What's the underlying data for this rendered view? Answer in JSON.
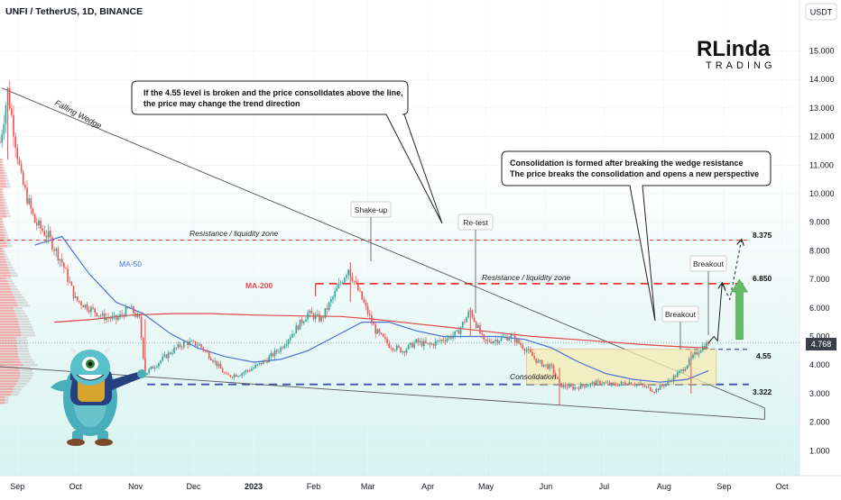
{
  "header": {
    "symbol_line": "UNFI / TetherUS, 1D, BINANCE",
    "currency_button": "USDT"
  },
  "logo": {
    "line1": "RLinda",
    "line2": "TRADING"
  },
  "colors": {
    "resistance": "#e53935",
    "support": "#3f51b5",
    "ma50": "#4a6fd8",
    "ma200": "#e04848",
    "bull": "#26a69a",
    "bear": "#ef5350",
    "consolidation_fill": "#f6ecb4",
    "arrow_green": "#66bb6a",
    "background_tint": "#d7f3ef"
  },
  "annotations": {
    "callout_top": [
      "If the 4.55 level is broken and the price consolidates above the line,",
      "the price may change the trend direction"
    ],
    "callout_right": [
      "Consolidation is formed after breaking the wedge resistance",
      "The price breaks the consolidation and opens a new perspective"
    ],
    "falling_wedge": "Falling Wedge",
    "resistance_zone_1": "Resistance / liquidity zone",
    "resistance_zone_2": "Resistance / liquidity zone",
    "ma50": "MA-50",
    "ma200": "MA-200",
    "shake_up": "Shake-up",
    "re_test": "Re-test",
    "breakout_1": "Breakout",
    "breakout_2": "Breakout",
    "consolidation": "Consolidation",
    "level_4_55": "4.55",
    "level_3_322": "3.322",
    "level_6_850": "6.850",
    "level_8_375": "8.375",
    "current_price": "4.768"
  },
  "chart_data": {
    "type": "candlestick",
    "x_axis_labels": [
      "Sep",
      "Oct",
      "Nov",
      "Dec",
      "2023",
      "Feb",
      "Mar",
      "Apr",
      "May",
      "Jun",
      "Jul",
      "Aug",
      "Sep",
      "Oct"
    ],
    "x_range": [
      "2022-08-23",
      "2023-10-10"
    ],
    "y_axis_labels": [
      "15.000",
      "14.000",
      "13.000",
      "12.000",
      "11.000",
      "10.000",
      "9.000",
      "8.000",
      "7.000",
      "6.000",
      "5.000",
      "4.000",
      "3.000",
      "2.000",
      "1.000"
    ],
    "y_range": [
      0.5,
      16.0
    ],
    "current_price": 4.768,
    "levels": [
      {
        "name": "Resistance / liquidity zone",
        "value": 8.375
      },
      {
        "name": "Resistance / liquidity zone",
        "value": 6.85
      },
      {
        "name": "4.55",
        "value": 4.55
      },
      {
        "name": "3.322",
        "value": 3.322
      }
    ],
    "price_path": [
      [
        "2022-08-23",
        11.8
      ],
      [
        "2022-08-27",
        13.6
      ],
      [
        "2022-09-03",
        10.5
      ],
      [
        "2022-09-10",
        9.0
      ],
      [
        "2022-09-17",
        8.5
      ],
      [
        "2022-09-24",
        7.6
      ],
      [
        "2022-10-01",
        6.3
      ],
      [
        "2022-10-08",
        6.0
      ],
      [
        "2022-10-15",
        5.7
      ],
      [
        "2022-10-22",
        5.6
      ],
      [
        "2022-10-29",
        6.0
      ],
      [
        "2022-11-03",
        5.6
      ],
      [
        "2022-11-06",
        3.7
      ],
      [
        "2022-11-13",
        4.1
      ],
      [
        "2022-11-20",
        4.5
      ],
      [
        "2022-11-27",
        4.8
      ],
      [
        "2022-12-04",
        4.7
      ],
      [
        "2022-12-11",
        4.2
      ],
      [
        "2022-12-18",
        3.6
      ],
      [
        "2022-12-25",
        3.7
      ],
      [
        "2023-01-01",
        3.9
      ],
      [
        "2023-01-08",
        4.2
      ],
      [
        "2023-01-15",
        4.6
      ],
      [
        "2023-01-22",
        5.2
      ],
      [
        "2023-01-29",
        5.8
      ],
      [
        "2023-02-05",
        5.6
      ],
      [
        "2023-02-12",
        6.5
      ],
      [
        "2023-02-19",
        7.4
      ],
      [
        "2023-02-26",
        6.3
      ],
      [
        "2023-03-05",
        5.2
      ],
      [
        "2023-03-12",
        4.7
      ],
      [
        "2023-03-19",
        4.5
      ],
      [
        "2023-03-26",
        4.8
      ],
      [
        "2023-04-02",
        4.7
      ],
      [
        "2023-04-09",
        4.9
      ],
      [
        "2023-04-16",
        5.1
      ],
      [
        "2023-04-23",
        5.9
      ],
      [
        "2023-04-30",
        4.8
      ],
      [
        "2023-05-07",
        4.9
      ],
      [
        "2023-05-14",
        5.0
      ],
      [
        "2023-05-21",
        4.6
      ],
      [
        "2023-05-28",
        4.1
      ],
      [
        "2023-06-04",
        3.9
      ],
      [
        "2023-06-08",
        3.3
      ],
      [
        "2023-06-15",
        3.2
      ],
      [
        "2023-06-22",
        3.3
      ],
      [
        "2023-06-29",
        3.4
      ],
      [
        "2023-07-06",
        3.3
      ],
      [
        "2023-07-13",
        3.4
      ],
      [
        "2023-07-20",
        3.3
      ],
      [
        "2023-07-27",
        3.1
      ],
      [
        "2023-08-03",
        3.4
      ],
      [
        "2023-08-10",
        3.8
      ],
      [
        "2023-08-15",
        4.2
      ],
      [
        "2023-08-20",
        4.6
      ],
      [
        "2023-08-24",
        4.77
      ]
    ],
    "ma50": [
      [
        "2022-09-10",
        8.2
      ],
      [
        "2022-09-24",
        8.5
      ],
      [
        "2022-10-08",
        7.2
      ],
      [
        "2022-10-22",
        6.2
      ],
      [
        "2022-11-05",
        5.8
      ],
      [
        "2022-11-19",
        5.1
      ],
      [
        "2022-12-03",
        4.6
      ],
      [
        "2022-12-17",
        4.3
      ],
      [
        "2023-01-01",
        4.1
      ],
      [
        "2023-01-15",
        4.2
      ],
      [
        "2023-01-29",
        4.5
      ],
      [
        "2023-02-12",
        5.0
      ],
      [
        "2023-02-26",
        5.5
      ],
      [
        "2023-03-12",
        5.5
      ],
      [
        "2023-03-26",
        5.2
      ],
      [
        "2023-04-09",
        5.0
      ],
      [
        "2023-04-23",
        5.0
      ],
      [
        "2023-05-07",
        5.0
      ],
      [
        "2023-05-21",
        4.9
      ],
      [
        "2023-06-04",
        4.6
      ],
      [
        "2023-06-18",
        4.1
      ],
      [
        "2023-07-02",
        3.7
      ],
      [
        "2023-07-16",
        3.5
      ],
      [
        "2023-07-30",
        3.4
      ],
      [
        "2023-08-13",
        3.5
      ],
      [
        "2023-08-24",
        3.8
      ]
    ],
    "ma200": [
      [
        "2022-09-20",
        5.5
      ],
      [
        "2022-10-10",
        5.6
      ],
      [
        "2022-10-30",
        5.75
      ],
      [
        "2022-11-20",
        5.8
      ],
      [
        "2022-12-10",
        5.8
      ],
      [
        "2023-01-01",
        5.75
      ],
      [
        "2023-01-25",
        5.72
      ],
      [
        "2023-02-15",
        5.7
      ],
      [
        "2023-03-05",
        5.6
      ],
      [
        "2023-03-25",
        5.45
      ],
      [
        "2023-04-15",
        5.3
      ],
      [
        "2023-05-05",
        5.15
      ],
      [
        "2023-05-25",
        5.0
      ],
      [
        "2023-06-15",
        4.9
      ],
      [
        "2023-07-05",
        4.8
      ],
      [
        "2023-07-25",
        4.7
      ],
      [
        "2023-08-15",
        4.62
      ],
      [
        "2023-08-24",
        4.6
      ]
    ],
    "wedge_upper": [
      [
        "2022-08-24",
        13.7
      ],
      [
        "2023-09-22",
        2.5
      ]
    ],
    "wedge_lower": [
      [
        "2022-08-22",
        3.95
      ],
      [
        "2023-09-22",
        2.1
      ]
    ],
    "consolidation_box": {
      "x": [
        "2023-05-22",
        "2023-08-28"
      ],
      "y": [
        3.322,
        4.55
      ]
    },
    "projection": [
      [
        "2023-08-24",
        4.77
      ],
      [
        "2023-08-31",
        6.85
      ],
      [
        "2023-09-04",
        6.3
      ],
      [
        "2023-09-10",
        8.375
      ]
    ]
  }
}
